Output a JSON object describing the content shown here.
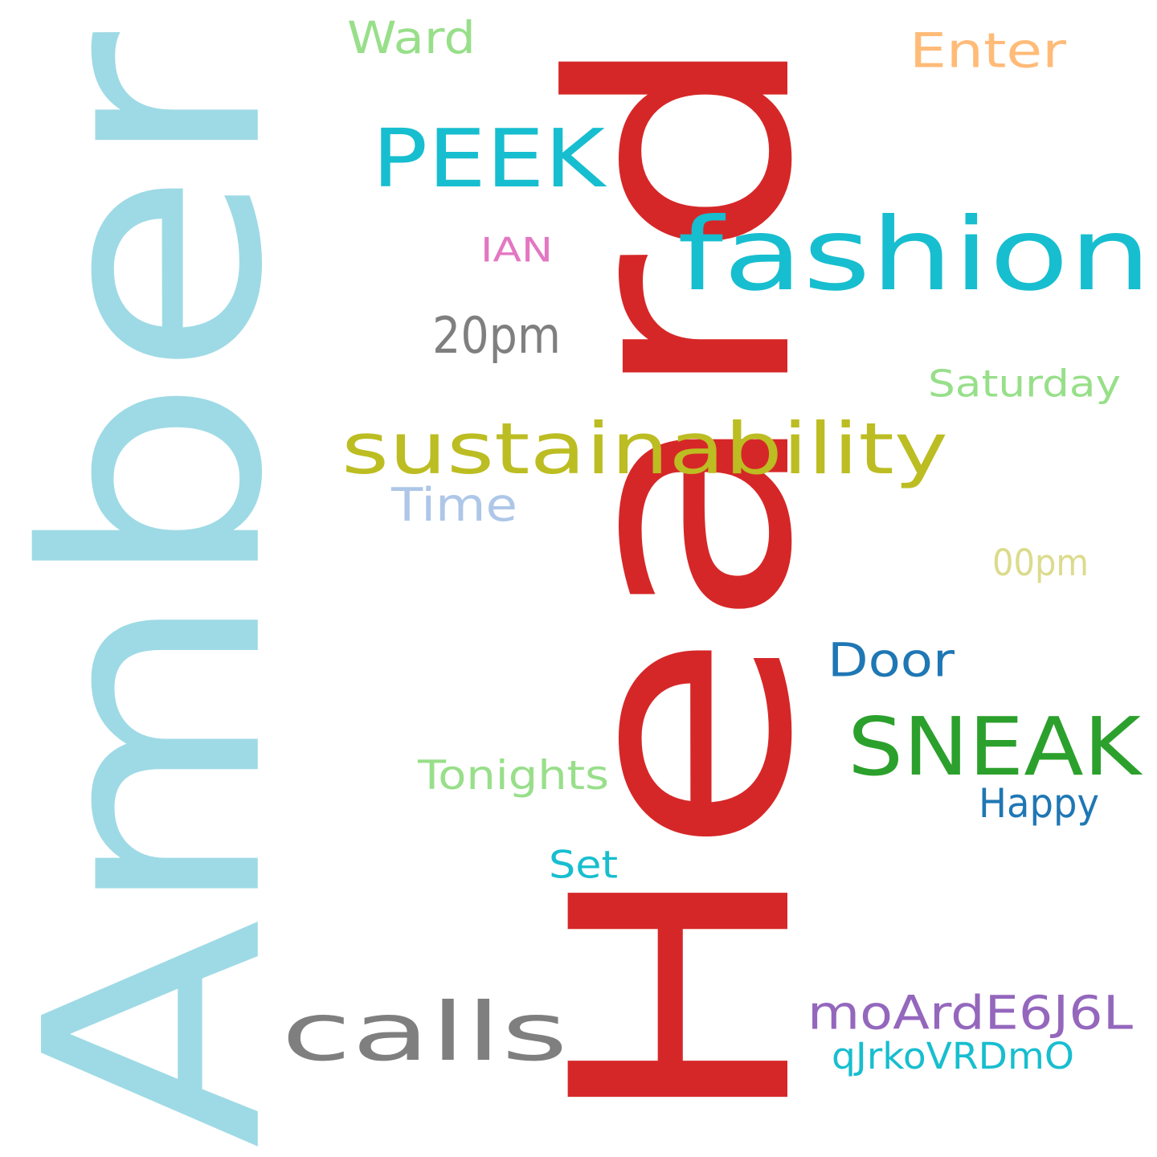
{
  "word_cloud": {
    "words": [
      {
        "key": "amber",
        "text": "Amber",
        "color": "#9edae5",
        "orientation": "vertical"
      },
      {
        "key": "heard",
        "text": "Heard",
        "color": "#d62728",
        "orientation": "vertical"
      },
      {
        "key": "fashion",
        "text": "fashion",
        "color": "#17becf",
        "orientation": "horizontal"
      },
      {
        "key": "peek",
        "text": "PEEK",
        "color": "#17becf",
        "orientation": "horizontal"
      },
      {
        "key": "sustainability",
        "text": "sustainability",
        "color": "#bcbd22",
        "orientation": "horizontal"
      },
      {
        "key": "sneak",
        "text": "SNEAK",
        "color": "#2ca02c",
        "orientation": "horizontal"
      },
      {
        "key": "calls",
        "text": "calls",
        "color": "#7f7f7f",
        "orientation": "horizontal"
      },
      {
        "key": "moarde6j6l",
        "text": "moArdE6J6L",
        "color": "#9467bd",
        "orientation": "horizontal"
      },
      {
        "key": "door",
        "text": "Door",
        "color": "#1f77b4",
        "orientation": "horizontal"
      },
      {
        "key": "pm20",
        "text": "20pm",
        "color": "#7f7f7f",
        "orientation": "horizontal"
      },
      {
        "key": "ward",
        "text": "Ward",
        "color": "#98df8a",
        "orientation": "horizontal"
      },
      {
        "key": "enter",
        "text": "Enter",
        "color": "#ffbb78",
        "orientation": "horizontal"
      },
      {
        "key": "time",
        "text": "Time",
        "color": "#aec7e8",
        "orientation": "horizontal"
      },
      {
        "key": "saturday",
        "text": "Saturday",
        "color": "#98df8a",
        "orientation": "horizontal"
      },
      {
        "key": "pm00",
        "text": "00pm",
        "color": "#dbdb8d",
        "orientation": "horizontal"
      },
      {
        "key": "tonights",
        "text": "Tonights",
        "color": "#98df8a",
        "orientation": "horizontal"
      },
      {
        "key": "happy",
        "text": "Happy",
        "color": "#1f77b4",
        "orientation": "horizontal"
      },
      {
        "key": "set",
        "text": "Set",
        "color": "#17becf",
        "orientation": "horizontal"
      },
      {
        "key": "qjrkovrdmo",
        "text": "qJrkoVRDmO",
        "color": "#17becf",
        "orientation": "horizontal"
      },
      {
        "key": "ian",
        "text": "IAN",
        "color": "#e377c2",
        "orientation": "horizontal"
      }
    ]
  }
}
